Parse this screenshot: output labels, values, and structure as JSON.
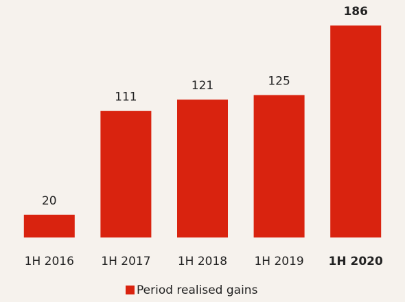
{
  "chart_data": {
    "type": "bar",
    "categories": [
      "1H 2016",
      "1H 2017",
      "1H 2018",
      "1H 2019",
      "1H 2020"
    ],
    "series": [
      {
        "name": "Period realised gains",
        "color": "#d9230f",
        "values": [
          20,
          111,
          121,
          125,
          186
        ]
      }
    ]
  }
}
